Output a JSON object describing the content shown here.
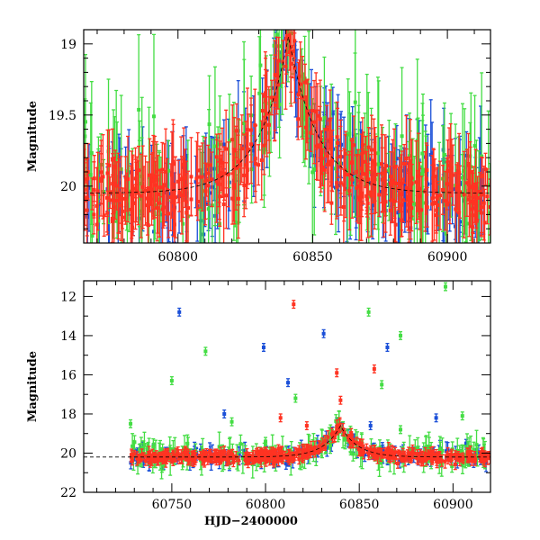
{
  "chart_data": [
    {
      "type": "scatter",
      "panel": "top",
      "ylabel": "Magnitude",
      "xlabel": "",
      "xlim": [
        60765,
        60916
      ],
      "ylim": [
        20.4,
        18.9
      ],
      "y_inverted": true,
      "x_ticks": [
        60800,
        60850,
        60900
      ],
      "y_ticks": [
        19,
        19.5,
        20
      ],
      "error_bars": true,
      "series": [
        {
          "color": "#1a4fd8",
          "model": {
            "peak_x": 60841,
            "peak_mag": 18.95,
            "base_mag": 20.05,
            "width": 11,
            "scatter": 0.28,
            "n": 170
          }
        },
        {
          "color": "#44dd44",
          "model": {
            "peak_x": 60841,
            "peak_mag": 18.95,
            "base_mag": 20.0,
            "width": 11,
            "scatter": 0.42,
            "n": 150
          }
        },
        {
          "color": "#ff3322",
          "model": {
            "peak_x": 60841,
            "peak_mag": 18.95,
            "base_mag": 20.05,
            "width": 11,
            "scatter": 0.22,
            "n": 380
          }
        }
      ]
    },
    {
      "type": "scatter",
      "panel": "bottom",
      "ylabel": "Magnitude",
      "xlabel": "HJD−2400000",
      "xlim": [
        60703,
        60920
      ],
      "ylim": [
        22,
        11.2
      ],
      "y_inverted": true,
      "x_ticks": [
        60750,
        60800,
        60850,
        60900
      ],
      "y_ticks": [
        12,
        14,
        16,
        18,
        20,
        22
      ],
      "error_bars": true,
      "series": [
        {
          "color": "#1a4fd8",
          "model": {
            "peak_x": 60840,
            "peak_mag": 18.6,
            "base_mag": 20.2,
            "width": 9,
            "scatter": 0.35,
            "n": 150
          },
          "outliers": [
            [
              60754,
              12.8
            ],
            [
              60778,
              18.0
            ],
            [
              60799,
              14.6
            ],
            [
              60812,
              16.4
            ],
            [
              60831,
              13.9
            ],
            [
              60838,
              18.4
            ],
            [
              60856,
              18.6
            ],
            [
              60865,
              14.6
            ],
            [
              60891,
              18.2
            ],
            [
              60907,
              19.5
            ]
          ]
        },
        {
          "color": "#44dd44",
          "model": {
            "peak_x": 60840,
            "peak_mag": 18.7,
            "base_mag": 20.1,
            "width": 9,
            "scatter": 0.55,
            "n": 160
          },
          "outliers": [
            [
              60728,
              18.5
            ],
            [
              60750,
              16.3
            ],
            [
              60768,
              14.8
            ],
            [
              60782,
              18.4
            ],
            [
              60800,
              19.4
            ],
            [
              60816,
              17.2
            ],
            [
              60840,
              18.7
            ],
            [
              60855,
              12.8
            ],
            [
              60862,
              16.5
            ],
            [
              60872,
              14.0
            ],
            [
              60896,
              11.5
            ],
            [
              60905,
              18.1
            ],
            [
              60872,
              18.8
            ]
          ]
        },
        {
          "color": "#ff3322",
          "model": {
            "peak_x": 60840,
            "peak_mag": 18.6,
            "base_mag": 20.2,
            "width": 9,
            "scatter": 0.25,
            "n": 420
          },
          "outliers": [
            [
              60815,
              12.4
            ],
            [
              60838,
              15.9
            ],
            [
              60840,
              17.3
            ],
            [
              60858,
              15.7
            ],
            [
              60808,
              18.2
            ],
            [
              60822,
              18.6
            ]
          ]
        }
      ]
    }
  ]
}
